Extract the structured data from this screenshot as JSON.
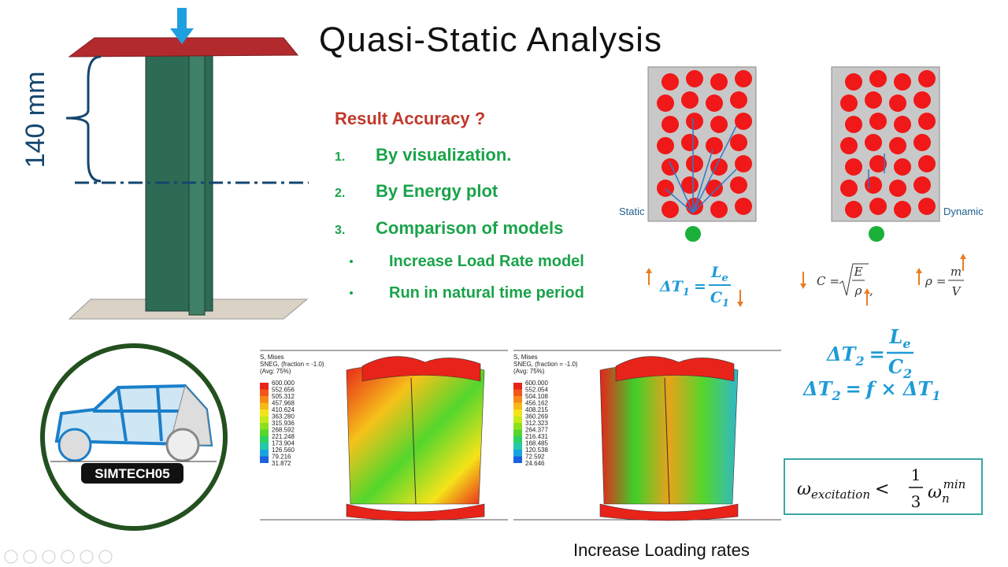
{
  "title": "Quasi-Static Analysis",
  "dimension_label": "140 mm",
  "question": "Result Accuracy ?",
  "items": [
    {
      "number": "1.",
      "text": "By visualization."
    },
    {
      "number": "2.",
      "text": "By Energy plot"
    },
    {
      "number": "3.",
      "text": "Comparison of models"
    }
  ],
  "sub_items": [
    "Increase Load Rate model",
    "Run in natural time period"
  ],
  "diagram_labels": {
    "static": "Static",
    "dynamic": "Dynamic"
  },
  "formulas": {
    "dt1": {
      "lhs": "ΔT",
      "lhs_sub": "1",
      "op": "=",
      "num": "L",
      "num_sub": "e",
      "den": "C",
      "den_sub": "1"
    },
    "wave_speed": {
      "lhs": "C",
      "op": "=",
      "num": "E",
      "den": "ρ",
      "tail": ","
    },
    "density": {
      "lhs": "ρ",
      "op": "=",
      "num": "m",
      "den": "V"
    },
    "dt2": {
      "lhs": "ΔT",
      "lhs_sub": "2",
      "op": "=",
      "num": "L",
      "num_sub": "e",
      "den": "C",
      "den_sub": "2"
    },
    "dt2_relation": {
      "lhs": "ΔT",
      "lhs_sub": "2",
      "op": "=",
      "rhs": "f × ΔT",
      "rhs_sub": "1"
    },
    "criterion": {
      "lhs": "ω",
      "lhs_sub": "excitation",
      "op": "<",
      "num": "1",
      "den": "3",
      "rhs": "ω",
      "rhs_sub": "n",
      "rhs_sup": "min"
    }
  },
  "logo": "SIMTECH05",
  "contour_plots": [
    {
      "header": [
        "S, Mises",
        "SNEG, (fraction = -1.0)",
        "(Avg: 75%)"
      ],
      "legend": [
        "600.000",
        "552.656",
        "505.312",
        "457.968",
        "410.624",
        "363.280",
        "315.936",
        "268.592",
        "221.248",
        "173.904",
        "126.560",
        "79.216",
        "31.872"
      ]
    },
    {
      "header": [
        "S, Mises",
        "SNEG, (fraction = -1.0)",
        "(Avg: 75%)"
      ],
      "legend": [
        "600.000",
        "552.054",
        "504.108",
        "456.162",
        "408.215",
        "360.269",
        "312.323",
        "264.377",
        "216.431",
        "168.485",
        "120.538",
        "72.592",
        "24.646"
      ]
    }
  ],
  "caption": "Increase Loading rates"
}
